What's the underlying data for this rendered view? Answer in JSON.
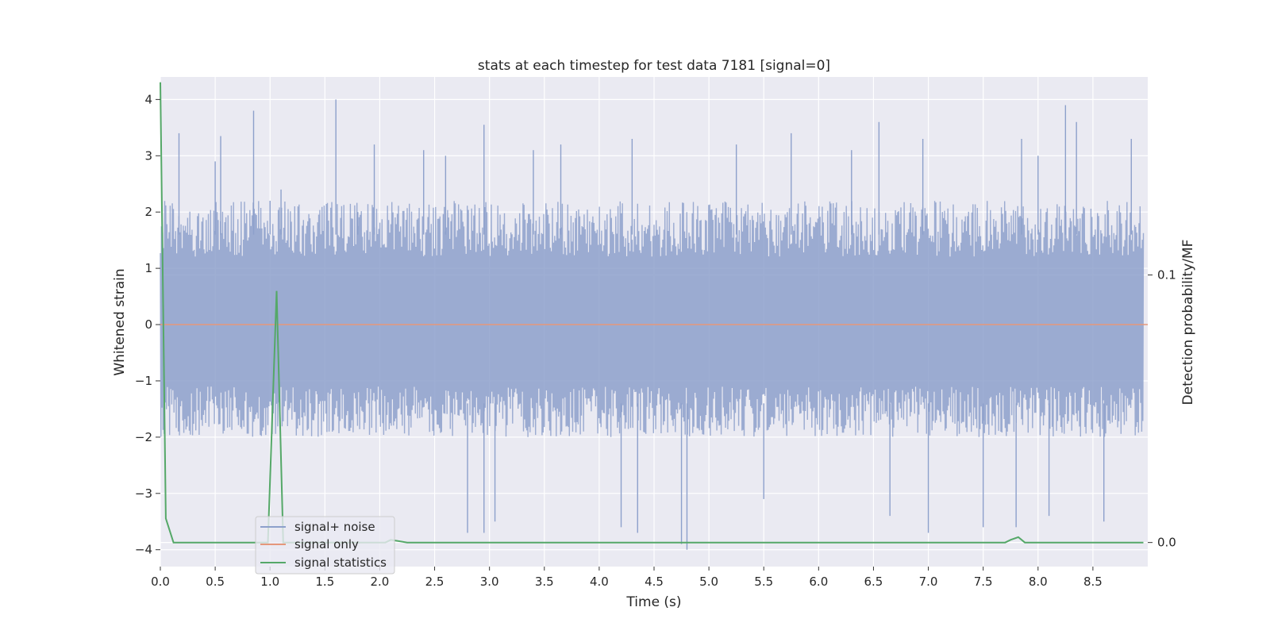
{
  "chart_data": {
    "type": "line",
    "title": "stats at each timestep for test data 7181 [signal=0]",
    "xlabel": "Time (s)",
    "ylabel": "Whitened strain",
    "y2label": "Detection probability/MF",
    "xlim": [
      0.0,
      9.0
    ],
    "ylim": [
      -4.3,
      4.4
    ],
    "y2lim": [
      -0.009,
      0.174
    ],
    "xticks": [
      "0.0",
      "0.5",
      "1.0",
      "1.5",
      "2.0",
      "2.5",
      "3.0",
      "3.5",
      "4.0",
      "4.5",
      "5.0",
      "5.5",
      "6.0",
      "6.5",
      "7.0",
      "7.5",
      "8.0",
      "8.5"
    ],
    "yticks": [
      "4",
      "3",
      "2",
      "1",
      "0",
      "−1",
      "−2",
      "−3",
      "−4"
    ],
    "y2ticks": [
      "0.1",
      "0.0"
    ],
    "grid": true,
    "legend_position": "lower-left",
    "legend": [
      "signal+ noise",
      "signal only",
      "signal statistics"
    ],
    "series": [
      {
        "name": "signal+ noise",
        "axis": "left",
        "color": "#8da0cb",
        "description_stats": {
          "envelope_upper_typical": 2.2,
          "envelope_lower_typical": -2.0
        },
        "peaks": [
          [
            0.17,
            3.4
          ],
          [
            0.5,
            2.9
          ],
          [
            0.55,
            3.35
          ],
          [
            0.85,
            3.8
          ],
          [
            1.0,
            2.2
          ],
          [
            1.1,
            2.4
          ],
          [
            1.6,
            4.0
          ],
          [
            1.8,
            2.0
          ],
          [
            1.95,
            3.2
          ],
          [
            2.4,
            3.1
          ],
          [
            2.6,
            3.0
          ],
          [
            2.95,
            3.55
          ],
          [
            3.4,
            3.1
          ],
          [
            3.65,
            3.2
          ],
          [
            4.3,
            3.3
          ],
          [
            5.25,
            3.2
          ],
          [
            5.75,
            3.4
          ],
          [
            6.3,
            3.1
          ],
          [
            6.55,
            3.6
          ],
          [
            6.95,
            3.3
          ],
          [
            7.85,
            3.3
          ],
          [
            8.0,
            3.0
          ],
          [
            8.25,
            3.9
          ],
          [
            8.35,
            3.6
          ],
          [
            8.85,
            3.3
          ],
          [
            2.8,
            -3.7
          ],
          [
            2.95,
            -3.7
          ],
          [
            3.05,
            -3.5
          ],
          [
            4.2,
            -3.6
          ],
          [
            4.35,
            -3.7
          ],
          [
            4.75,
            -3.9
          ],
          [
            4.8,
            -4.0
          ],
          [
            5.5,
            -3.1
          ],
          [
            6.65,
            -3.4
          ],
          [
            7.0,
            -3.7
          ],
          [
            7.5,
            -3.6
          ],
          [
            7.8,
            -3.6
          ],
          [
            8.1,
            -3.4
          ],
          [
            8.6,
            -3.5
          ]
        ]
      },
      {
        "name": "signal only",
        "axis": "left",
        "color": "#e5977b",
        "x": [
          0.0,
          9.0
        ],
        "y": [
          0.0,
          0.0
        ]
      },
      {
        "name": "signal statistics",
        "axis": "right",
        "color": "#55a868",
        "x": [
          0.0,
          0.05,
          0.12,
          0.5,
          0.9,
          0.98,
          1.06,
          1.12,
          1.2,
          1.9,
          2.05,
          2.1,
          2.25,
          3.0,
          7.7,
          7.75,
          7.82,
          7.88,
          8.0,
          8.5,
          8.96
        ],
        "y": [
          0.172,
          0.009,
          0.0,
          0.0,
          0.0,
          0.0,
          0.094,
          0.0,
          0.0,
          0.0,
          0.0,
          0.001,
          0.0,
          0.0,
          0.0,
          0.001,
          0.002,
          0.0,
          0.0,
          0.0,
          0.0
        ]
      }
    ]
  }
}
